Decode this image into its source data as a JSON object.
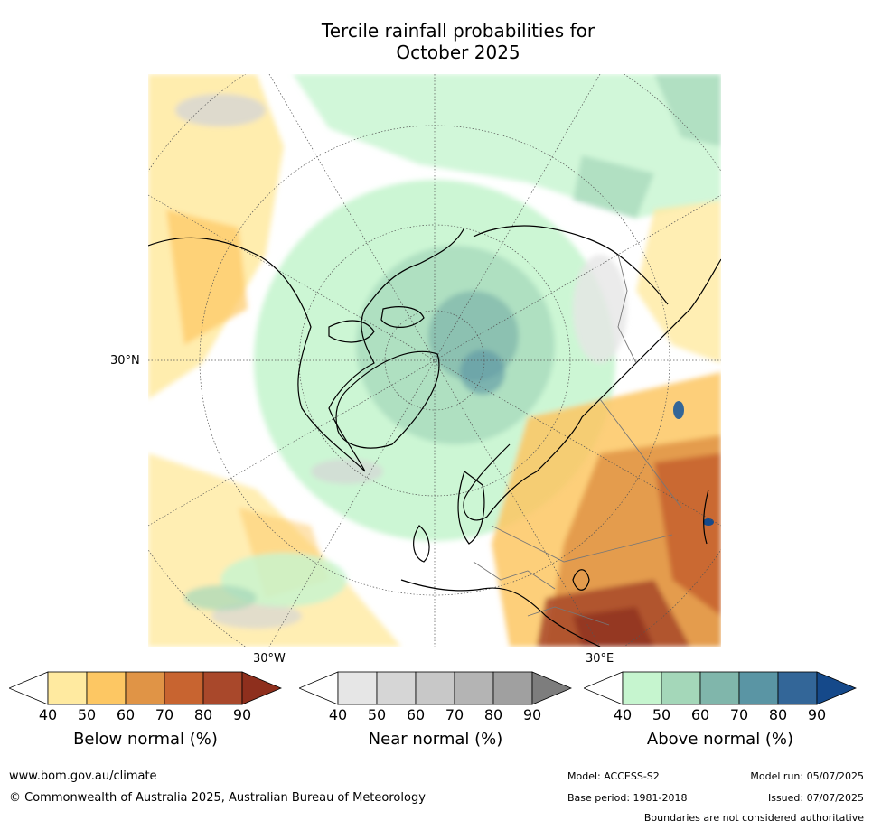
{
  "title": {
    "line1": "Tercile rainfall probabilities for",
    "line2": "October 2025"
  },
  "map_labels": {
    "lat": "30°N",
    "lon_west": "30°W",
    "lon_east": "30°E"
  },
  "colorbars": [
    {
      "title": "Below normal (%)",
      "ticks": [
        "40",
        "50",
        "60",
        "70",
        "80",
        "90"
      ],
      "colors": [
        "#ffffff",
        "#ffeaa0",
        "#fdc763",
        "#e09446",
        "#c86430",
        "#a9482b",
        "#8e2f1d"
      ]
    },
    {
      "title": "Near normal (%)",
      "ticks": [
        "40",
        "50",
        "60",
        "70",
        "80",
        "90"
      ],
      "colors": [
        "#ffffff",
        "#e6e6e6",
        "#d6d6d6",
        "#c8c8c8",
        "#b4b4b4",
        "#a0a0a0",
        "#7d7d7d"
      ]
    },
    {
      "title": "Above normal (%)",
      "ticks": [
        "40",
        "50",
        "60",
        "70",
        "80",
        "90"
      ],
      "colors": [
        "#ffffff",
        "#c6f5cf",
        "#a4d7b9",
        "#80b6ab",
        "#5a95a4",
        "#336698",
        "#15498a"
      ]
    }
  ],
  "footer": {
    "website": "www.bom.gov.au/climate",
    "copyright": "© Commonwealth of Australia 2025, Australian Bureau of Meteorology",
    "model": "Model: ACCESS-S2",
    "base_period": "Base period: 1981-2018",
    "model_run": "Model run: 05/07/2025",
    "issued": "Issued: 07/07/2025",
    "disclaimer": "Boundaries are not considered authoritative"
  }
}
